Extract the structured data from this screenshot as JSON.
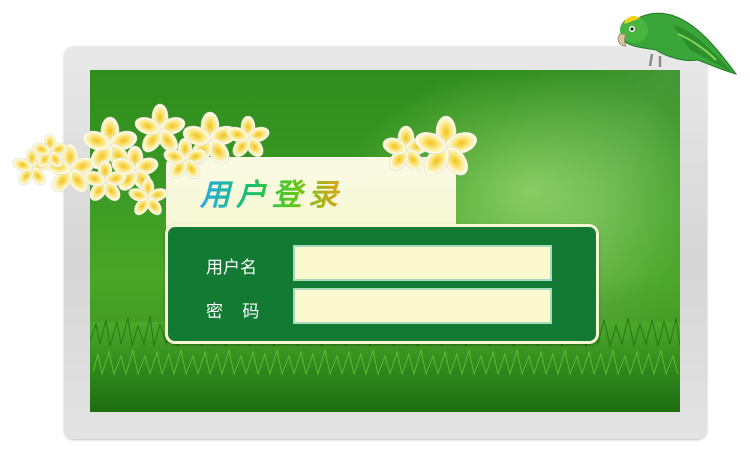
{
  "login": {
    "title": "用户登录",
    "username_label": "用户名",
    "password_label": "密 码",
    "username_value": "",
    "password_value": ""
  },
  "decor": {
    "frame_icon": "monitor-frame",
    "flowers_icon": "frangipani-flowers",
    "parrot_icon": "green-parrot"
  },
  "colors": {
    "screen_green": "#3a9a22",
    "box_green": "#127a33",
    "input_fill": "#fdf9cf",
    "panel_cream": "#f7f7d4"
  }
}
